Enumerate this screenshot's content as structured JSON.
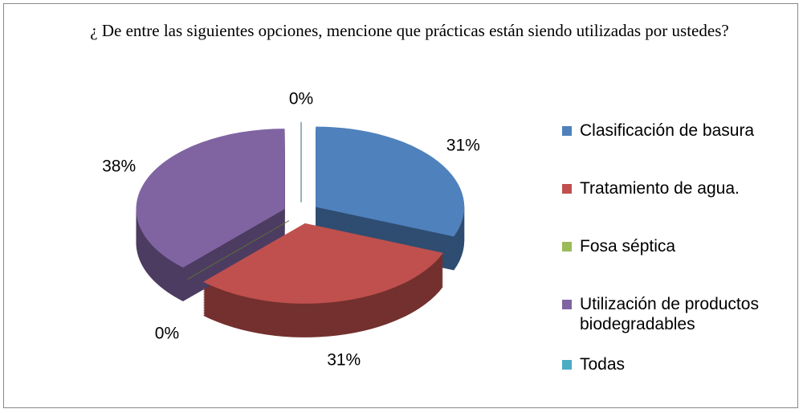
{
  "chart_data": {
    "type": "pie",
    "title": "¿ De entre las siguientes opciones, mencione que prácticas están siendo utilizadas por ustedes?",
    "categories": [
      "Clasificación de basura",
      "Tratamiento de agua.",
      "Fosa séptica",
      "Utilización de productos biodegradables",
      "Todas"
    ],
    "values": [
      31,
      31,
      0,
      38,
      0
    ],
    "value_labels": [
      "31%",
      "31%",
      "0%",
      "38%",
      "0%"
    ],
    "colors": [
      "#4f81bd",
      "#c0504d",
      "#9bbb59",
      "#8064a2",
      "#4bacc6"
    ],
    "legend": "right"
  }
}
